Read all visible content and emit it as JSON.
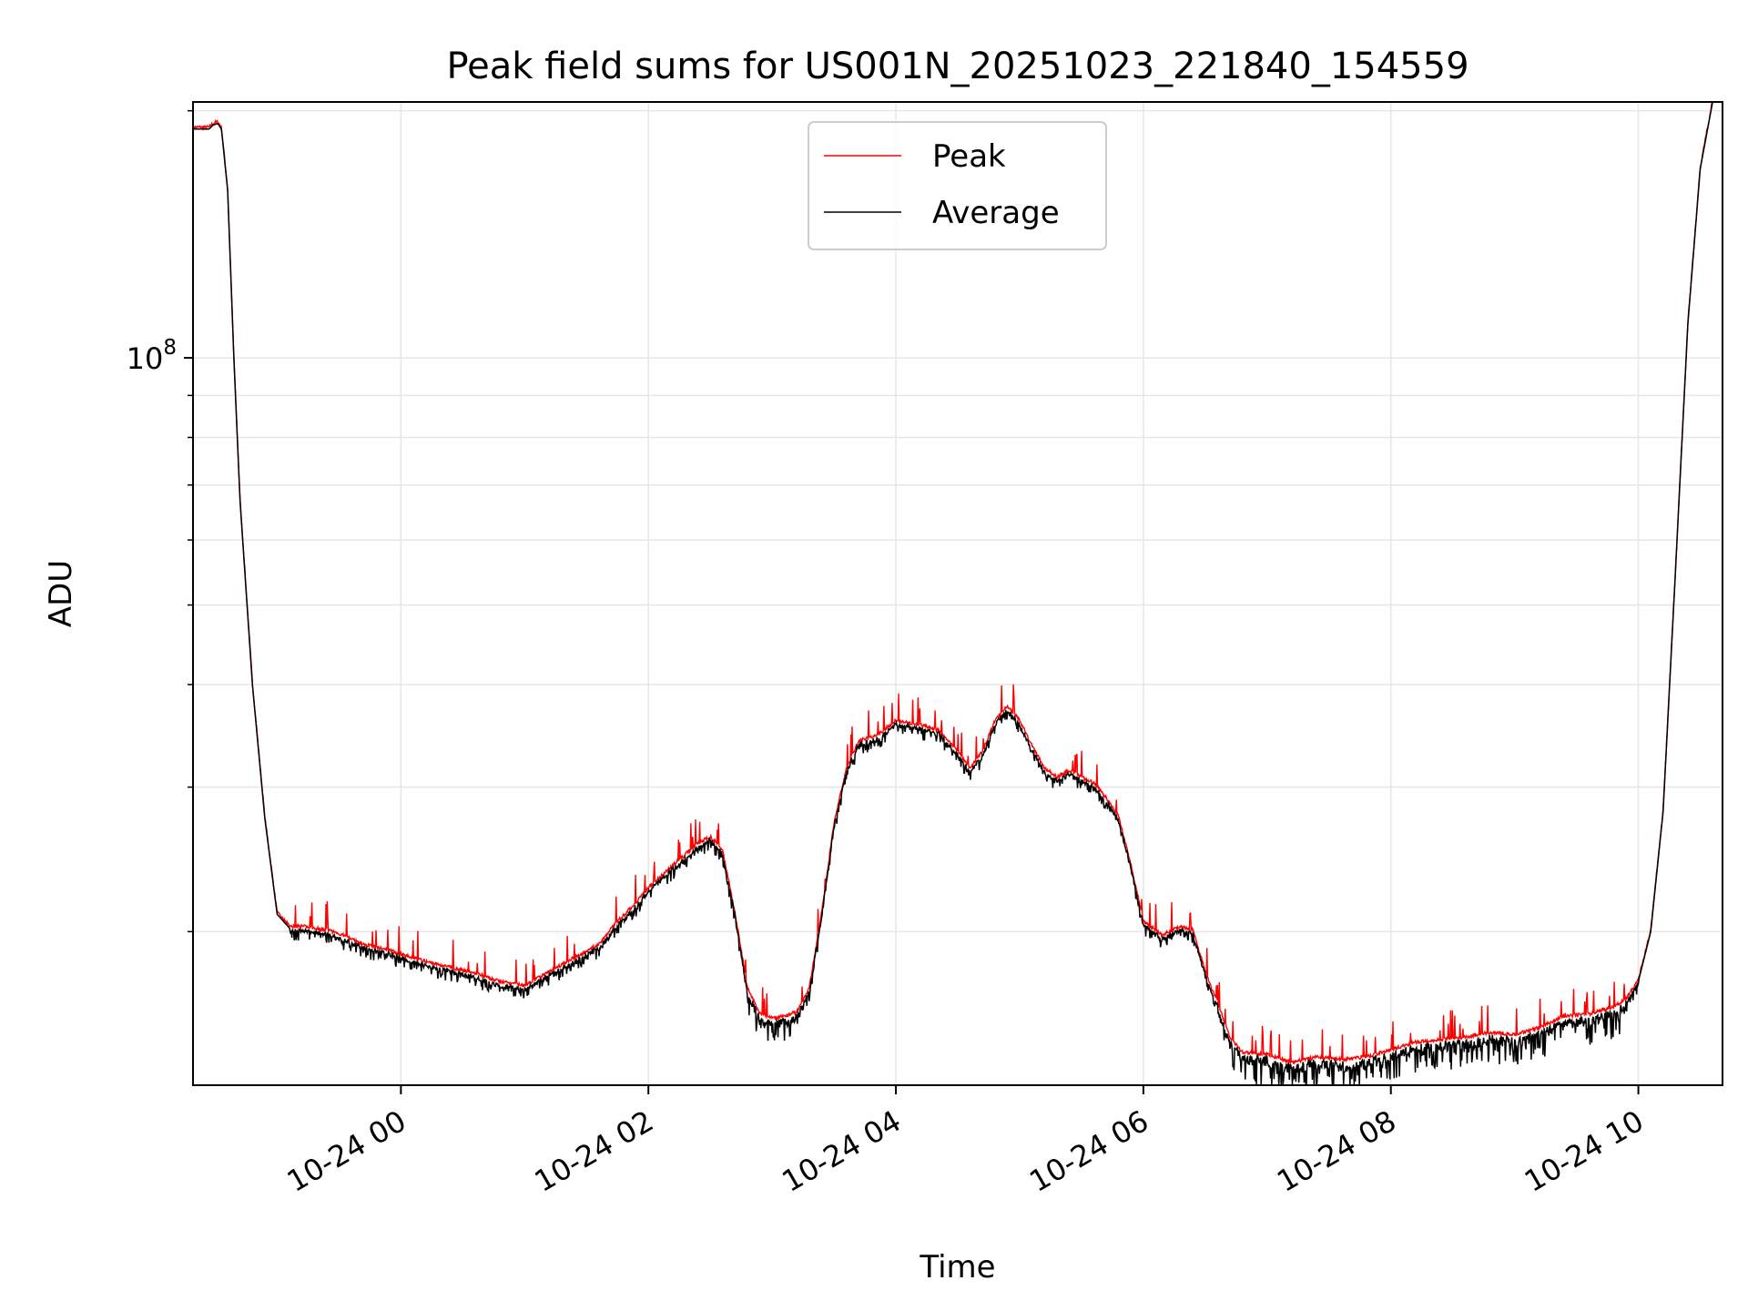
{
  "chart_data": {
    "type": "line",
    "title": "Peak field sums for US001N_20251023_221840_154559",
    "xlabel": "Time",
    "ylabel": "ADU",
    "y_scale": "log",
    "ylim": [
      13000000,
      205000000
    ],
    "xlim_hours": [
      -1.68,
      10.68
    ],
    "x_ticks": [
      {
        "hour": 0,
        "label": "10-24 00"
      },
      {
        "hour": 2,
        "label": "10-24 02"
      },
      {
        "hour": 4,
        "label": "10-24 04"
      },
      {
        "hour": 6,
        "label": "10-24 06"
      },
      {
        "hour": 8,
        "label": "10-24 08"
      },
      {
        "hour": 10,
        "label": "10-24 10"
      }
    ],
    "y_tick_major": {
      "value": 100000000,
      "base": "10",
      "exp": "8"
    },
    "y_tick_minor": [
      20000000,
      30000000,
      40000000,
      50000000,
      60000000,
      70000000,
      80000000,
      90000000,
      200000000
    ],
    "grid": true,
    "legend": {
      "position": "top-center"
    },
    "series": [
      {
        "name": "Peak",
        "color": "#ff0000",
        "spike_magnitude": 0.06
      },
      {
        "name": "Average",
        "color": "#000000",
        "x_hours": [
          -1.68,
          -1.55,
          -1.52,
          -1.48,
          -1.45,
          -1.4,
          -1.35,
          -1.3,
          -1.2,
          -1.1,
          -1.0,
          -0.9,
          -0.8,
          -0.7,
          -0.6,
          -0.5,
          -0.3,
          -0.1,
          0.0,
          0.2,
          0.4,
          0.6,
          0.8,
          1.0,
          1.2,
          1.4,
          1.6,
          1.75,
          1.85,
          2.0,
          2.2,
          2.4,
          2.5,
          2.6,
          2.7,
          2.8,
          2.9,
          3.0,
          3.1,
          3.2,
          3.3,
          3.4,
          3.5,
          3.6,
          3.7,
          3.85,
          4.0,
          4.2,
          4.35,
          4.5,
          4.6,
          4.7,
          4.8,
          4.9,
          5.0,
          5.1,
          5.2,
          5.3,
          5.4,
          5.5,
          5.6,
          5.7,
          5.8,
          5.9,
          6.0,
          6.15,
          6.3,
          6.4,
          6.5,
          6.6,
          6.7,
          6.8,
          7.0,
          7.2,
          7.4,
          7.6,
          7.8,
          8.0,
          8.2,
          8.4,
          8.6,
          8.8,
          9.0,
          9.2,
          9.4,
          9.6,
          9.8,
          9.9,
          10.0,
          10.1,
          10.2,
          10.3,
          10.4,
          10.5,
          10.6,
          10.68
        ],
        "values": [
          190000000,
          190000000,
          192000000,
          193000000,
          190000000,
          160000000,
          100000000,
          67000000,
          40000000,
          27500000,
          21000000,
          20200000,
          20200000,
          20100000,
          20000000,
          19800000,
          19200000,
          18900000,
          18700000,
          18300000,
          18000000,
          17700000,
          17300000,
          17100000,
          17800000,
          18500000,
          19200000,
          20500000,
          21200000,
          22500000,
          24000000,
          25500000,
          26000000,
          25000000,
          21000000,
          17000000,
          15800000,
          15600000,
          15700000,
          15900000,
          17000000,
          21000000,
          27000000,
          31500000,
          34000000,
          34500000,
          36000000,
          35500000,
          35000000,
          33000000,
          31500000,
          33000000,
          36000000,
          37500000,
          36000000,
          33500000,
          31500000,
          30700000,
          31300000,
          30700000,
          30200000,
          29000000,
          27500000,
          24000000,
          20500000,
          19700000,
          20200000,
          20000000,
          17800000,
          16300000,
          14800000,
          14200000,
          14100000,
          13800000,
          14000000,
          13900000,
          14000000,
          14300000,
          14600000,
          14700000,
          14800000,
          15000000,
          14900000,
          15200000,
          15700000,
          15800000,
          16100000,
          16500000,
          17400000,
          20000000,
          28000000,
          55000000,
          110000000,
          170000000,
          205000000,
          205000000
        ]
      }
    ]
  }
}
